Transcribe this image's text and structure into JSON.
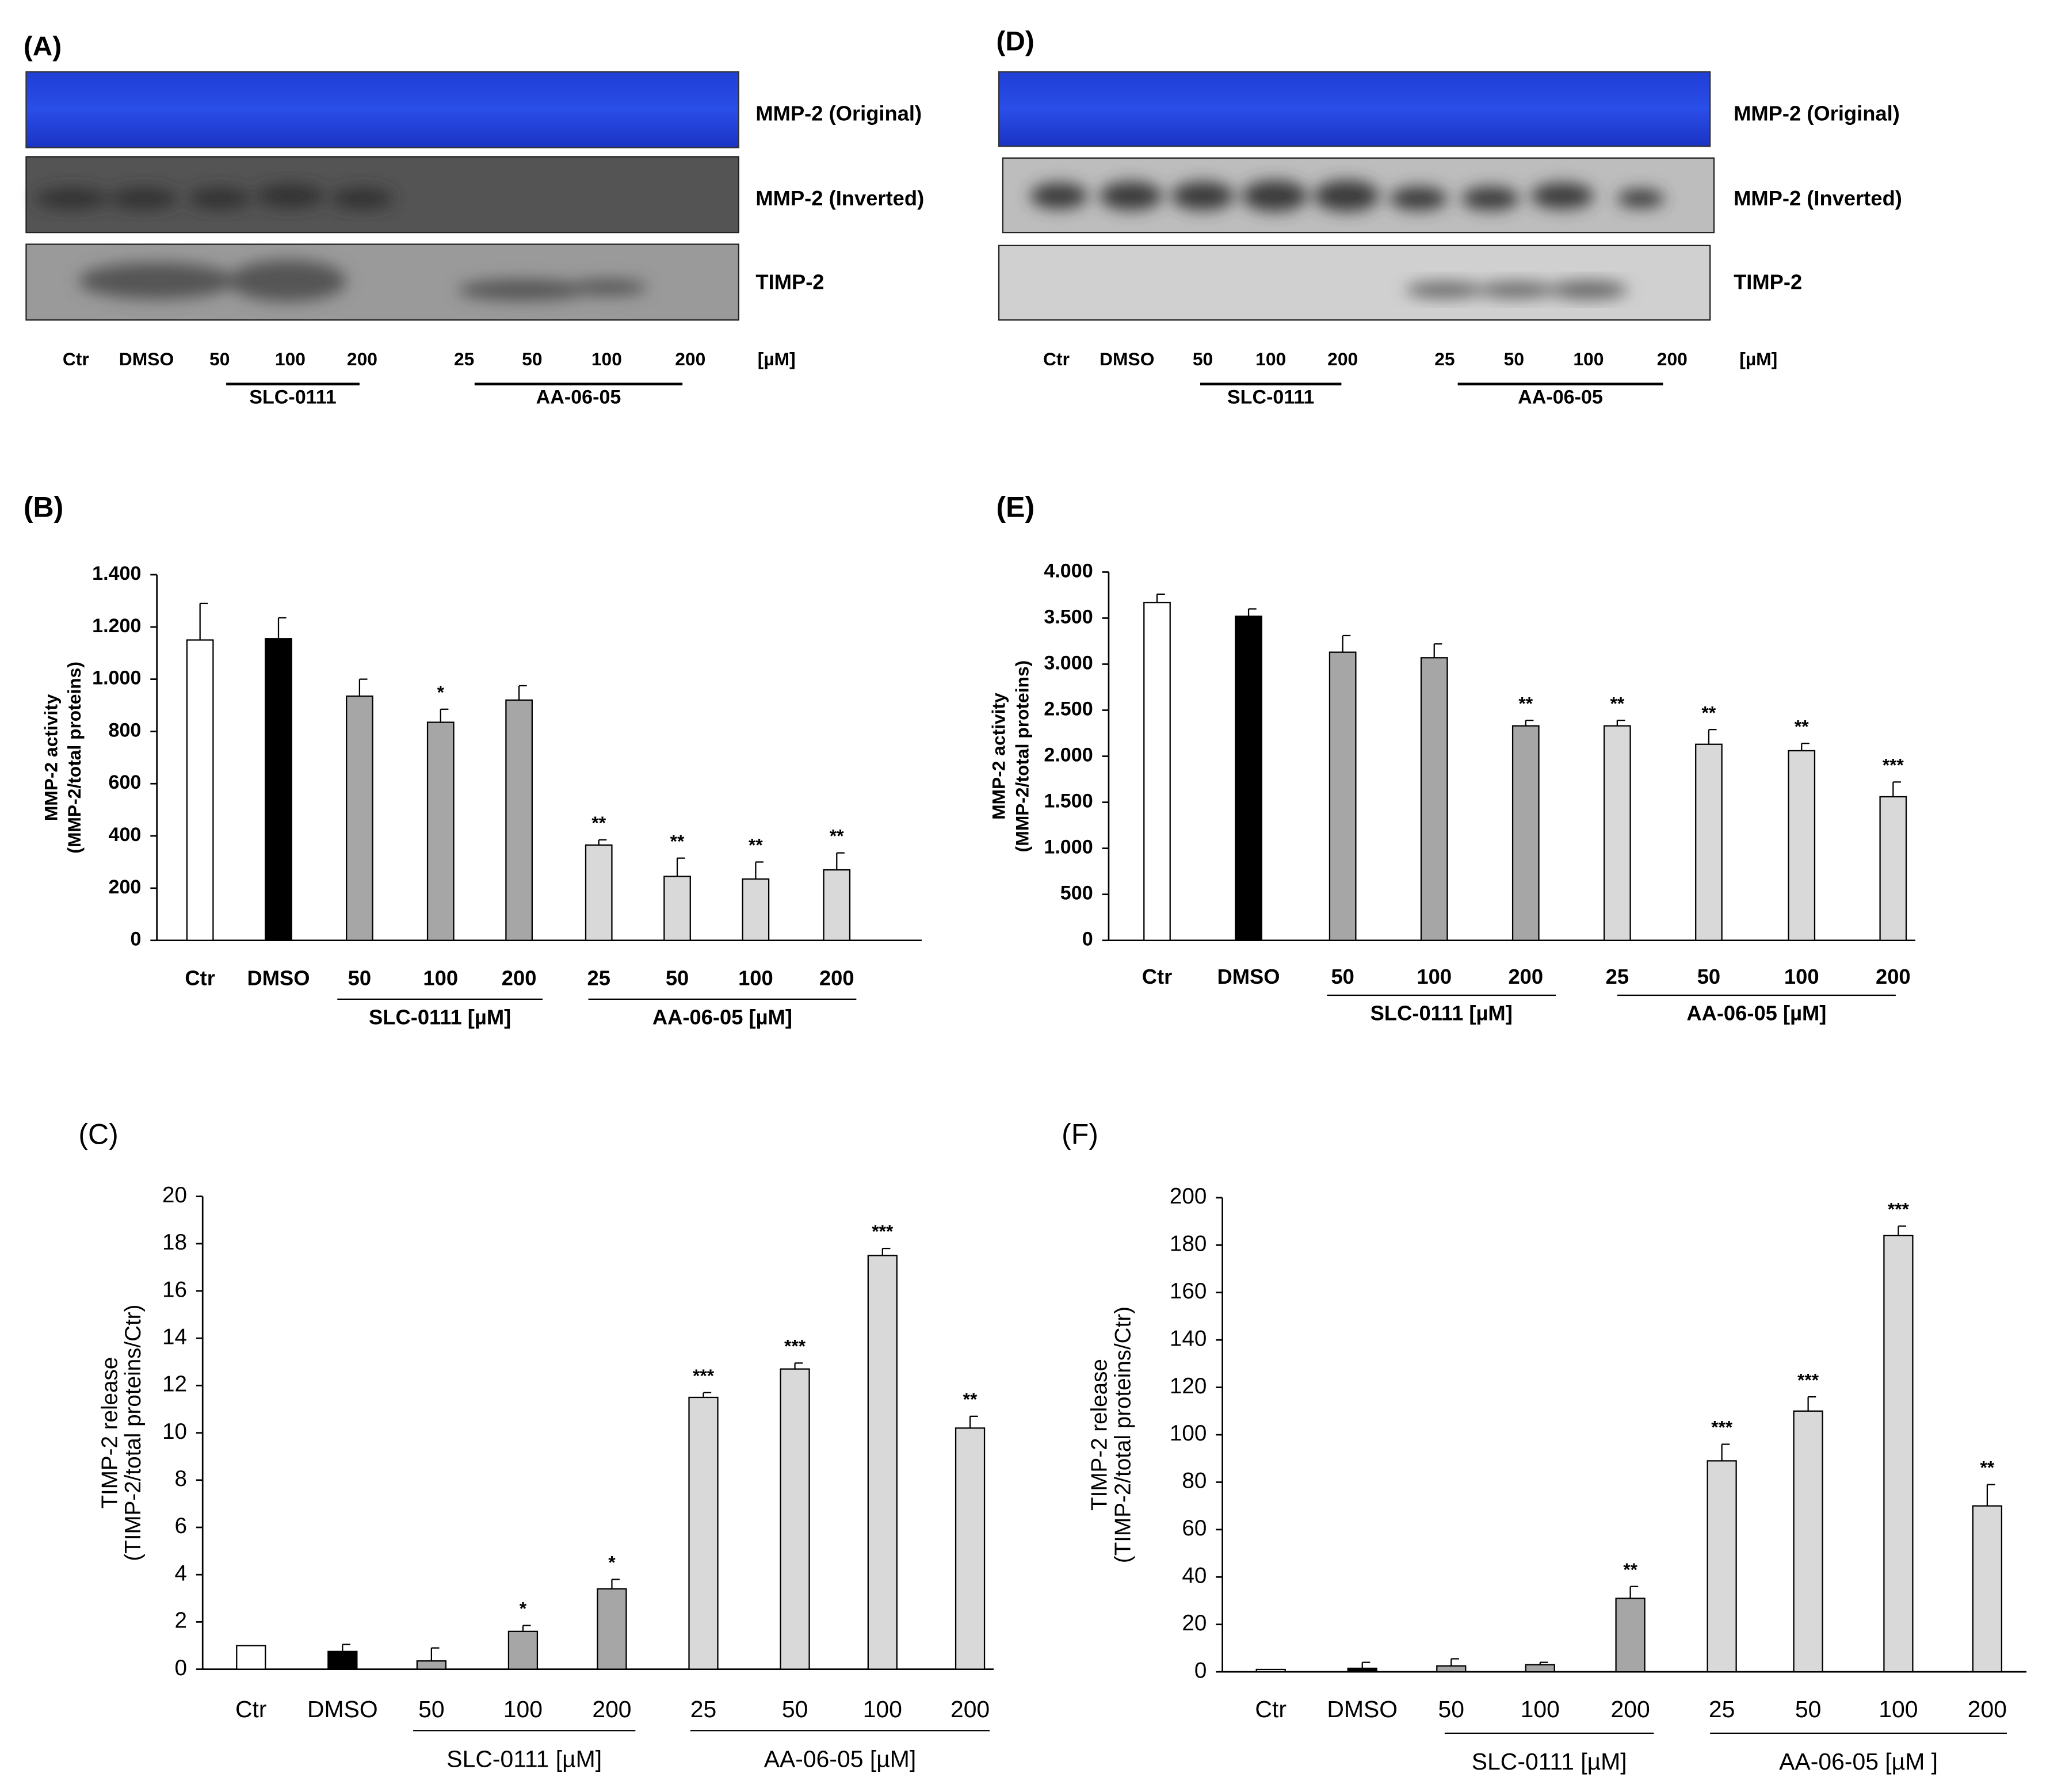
{
  "blots": [
    {
      "panel": "(A)",
      "rows": [
        "MMP-2 (Original)",
        "MMP-2 (Inverted)",
        "TIMP-2"
      ],
      "lanes": [
        "Ctr",
        "DMSO",
        "50",
        "100",
        "200",
        "25",
        "50",
        "100",
        "200"
      ],
      "unit": "[µM]",
      "groups": [
        "SLC-0111",
        "AA-06-05"
      ]
    },
    {
      "panel": "(D)",
      "rows": [
        "MMP-2 (Original)",
        "MMP-2 (Inverted)",
        "TIMP-2"
      ],
      "lanes": [
        "Ctr",
        "DMSO",
        "50",
        "100",
        "200",
        "25",
        "50",
        "100",
        "200"
      ],
      "unit": "[µM]",
      "groups": [
        "SLC-0111",
        "AA-06-05"
      ]
    }
  ],
  "chart_data": [
    {
      "type": "bar",
      "panel": "(B)",
      "ylabel": [
        "MMP-2 activity",
        "(MMP-2/total proteins)"
      ],
      "categories": [
        "Ctr",
        "DMSO",
        "50",
        "100",
        "200",
        "25",
        "50",
        "100",
        "200"
      ],
      "groups": [
        "SLC-0111 [µM]",
        "AA-06-05 [µM]"
      ],
      "values": [
        1150,
        1155,
        935,
        835,
        920,
        365,
        245,
        235,
        270
      ],
      "errors": [
        140,
        80,
        65,
        50,
        55,
        20,
        70,
        65,
        65
      ],
      "annotations": [
        null,
        null,
        null,
        "*",
        null,
        "**",
        "**",
        "**",
        "**"
      ],
      "colors": [
        "#ffffff",
        "#000000",
        "#a6a6a6",
        "#a6a6a6",
        "#a6a6a6",
        "#d9d9d9",
        "#d9d9d9",
        "#d9d9d9",
        "#d9d9d9"
      ],
      "ylim": [
        0,
        1400
      ],
      "yticks": [
        0,
        200,
        400,
        600,
        800,
        {
          "value": 1000,
          "label": "1.000"
        },
        {
          "value": 1200,
          "label": "1.200"
        },
        {
          "value": 1400,
          "label": "1.400"
        }
      ]
    },
    {
      "type": "bar",
      "panel": "(E)",
      "ylabel": [
        "MMP-2 activity",
        "(MMP-2/total proteins)"
      ],
      "categories": [
        "Ctr",
        "DMSO",
        "50",
        "100",
        "200",
        "25",
        "50",
        "100",
        "200"
      ],
      "groups": [
        "SLC-0111  [µM]",
        "AA-06-05  [µM]"
      ],
      "values": [
        3670,
        3520,
        3130,
        3070,
        2330,
        2330,
        2130,
        2060,
        1560
      ],
      "errors": [
        90,
        80,
        180,
        150,
        60,
        60,
        160,
        80,
        160
      ],
      "annotations": [
        null,
        null,
        null,
        null,
        "**",
        "**",
        "**",
        "**",
        "***"
      ],
      "colors": [
        "#ffffff",
        "#000000",
        "#a6a6a6",
        "#a6a6a6",
        "#a6a6a6",
        "#d9d9d9",
        "#d9d9d9",
        "#d9d9d9",
        "#d9d9d9"
      ],
      "ylim": [
        0,
        4000
      ],
      "yticks": [
        0,
        500,
        {
          "value": 1000,
          "label": "1.000"
        },
        {
          "value": 1500,
          "label": "1.500"
        },
        {
          "value": 2000,
          "label": "2.000"
        },
        {
          "value": 2500,
          "label": "2.500"
        },
        {
          "value": 3000,
          "label": "3.000"
        },
        {
          "value": 3500,
          "label": "3.500"
        },
        {
          "value": 4000,
          "label": "4.000"
        }
      ]
    },
    {
      "type": "bar",
      "panel": "(C)",
      "ylabel": [
        "TIMP-2 release",
        "(TIMP-2/total proteins/Ctr)"
      ],
      "categories": [
        "Ctr",
        "DMSO",
        "50",
        "100",
        "200",
        "25",
        "50",
        "100",
        "200"
      ],
      "groups": [
        "SLC-0111  [µM]",
        "AA-06-05  [µM]"
      ],
      "values": [
        1.0,
        0.75,
        0.35,
        1.6,
        3.4,
        11.5,
        12.7,
        17.5,
        10.2
      ],
      "errors": [
        0,
        0.3,
        0.55,
        0.25,
        0.4,
        0.2,
        0.25,
        0.3,
        0.5
      ],
      "annotations": [
        null,
        null,
        null,
        "*",
        "*",
        "***",
        "***",
        "***",
        "**"
      ],
      "colors": [
        "#ffffff",
        "#000000",
        "#a6a6a6",
        "#a6a6a6",
        "#a6a6a6",
        "#d9d9d9",
        "#d9d9d9",
        "#d9d9d9",
        "#d9d9d9"
      ],
      "ylim": [
        0,
        20
      ],
      "yticks": [
        0,
        2,
        4,
        6,
        8,
        10,
        12,
        14,
        16,
        18,
        20
      ]
    },
    {
      "type": "bar",
      "panel": "(F)",
      "ylabel": [
        "TIMP-2 release",
        "(TIMP-2/total proteins/Ctr)"
      ],
      "categories": [
        "Ctr",
        "DMSO",
        "50",
        "100",
        "200",
        "25",
        "50",
        "100",
        "200"
      ],
      "groups": [
        "SLC-0111  [µM]",
        "AA-06-05  [µM ]"
      ],
      "values": [
        1,
        1.5,
        2.5,
        3,
        31,
        89,
        110,
        184,
        70
      ],
      "errors": [
        0,
        2.5,
        3,
        1,
        5,
        7,
        6,
        4,
        9
      ],
      "annotations": [
        null,
        null,
        null,
        null,
        "**",
        "***",
        "***",
        "***",
        "**"
      ],
      "colors": [
        "#ffffff",
        "#000000",
        "#a6a6a6",
        "#a6a6a6",
        "#a6a6a6",
        "#d9d9d9",
        "#d9d9d9",
        "#d9d9d9",
        "#d9d9d9"
      ],
      "ylim": [
        0,
        200
      ],
      "yticks": [
        0,
        20,
        40,
        60,
        80,
        100,
        120,
        140,
        160,
        180,
        200
      ]
    }
  ]
}
